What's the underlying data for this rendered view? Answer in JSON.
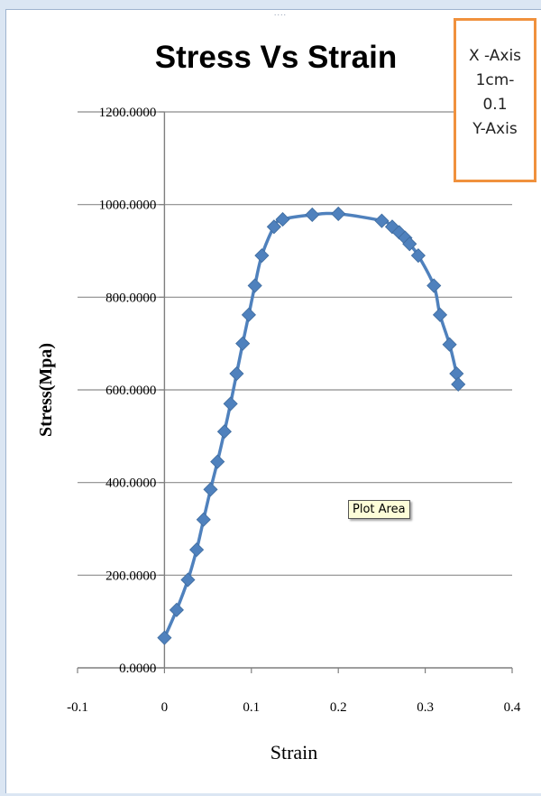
{
  "window": {
    "grip_glyph": "...."
  },
  "legend_box": {
    "lines": [
      "X -Axis",
      "1cm-",
      "0.1",
      "Y-Axis"
    ]
  },
  "tooltip": {
    "text": "Plot Area"
  },
  "colors": {
    "series": "#4f81bd",
    "grid": "#8c8c8c",
    "legend_border": "#f0913d"
  },
  "chart_data": {
    "type": "scatter",
    "title": "Stress Vs Strain",
    "xlabel": "Strain",
    "ylabel": "Stress(Mpa)",
    "xlim": [
      -0.1,
      0.4
    ],
    "ylim": [
      0,
      1200
    ],
    "x_ticks": [
      -0.1,
      0,
      0.1,
      0.2,
      0.3,
      0.4
    ],
    "x_tick_labels": [
      "-0.1",
      "0",
      "0.1",
      "0.2",
      "0.3",
      "0.4"
    ],
    "y_ticks": [
      0,
      200,
      400,
      600,
      800,
      1000,
      1200
    ],
    "y_tick_labels": [
      "0.0000",
      "200.0000",
      "400.0000",
      "600.0000",
      "800.0000",
      "1000.0000",
      "1200.0000"
    ],
    "grid": "horizontal",
    "marker": "diamond",
    "line": "smooth",
    "series": [
      {
        "x": [
          0.0,
          0.014,
          0.027,
          0.037,
          0.045,
          0.053,
          0.061,
          0.069,
          0.076,
          0.083,
          0.09,
          0.097,
          0.104,
          0.112,
          0.126,
          0.136,
          0.17,
          0.2,
          0.25,
          0.262,
          0.27,
          0.277,
          0.282,
          0.292,
          0.31,
          0.317,
          0.328,
          0.336,
          0.338
        ],
        "y": [
          65,
          125,
          190,
          255,
          320,
          385,
          445,
          510,
          570,
          635,
          700,
          762,
          825,
          890,
          952,
          968,
          978,
          980,
          965,
          952,
          940,
          928,
          915,
          890,
          825,
          762,
          698,
          635,
          612
        ]
      }
    ]
  }
}
